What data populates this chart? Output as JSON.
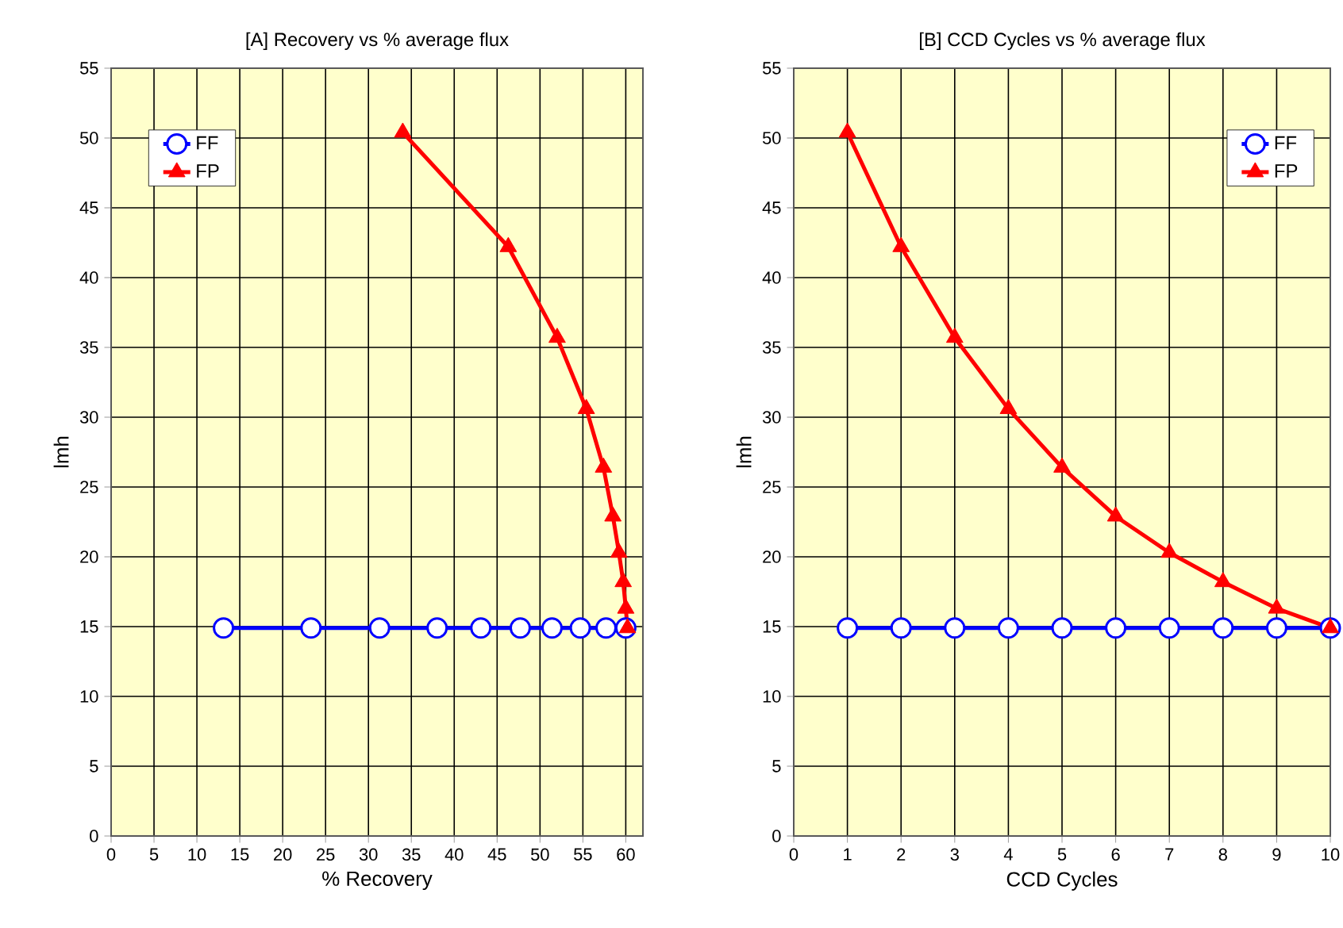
{
  "chart_data": [
    {
      "type": "line",
      "title": "[A]  Recovery  vs %  average flux",
      "xlabel": "% Recovery",
      "ylabel": "lmh",
      "xlim": [
        0,
        62
      ],
      "ylim": [
        0,
        55
      ],
      "xticks": [
        0,
        5,
        10,
        15,
        20,
        25,
        30,
        35,
        40,
        45,
        50,
        55,
        60
      ],
      "yticks": [
        0,
        5,
        10,
        15,
        20,
        25,
        30,
        35,
        40,
        45,
        50,
        55
      ],
      "grid": true,
      "legend": "top left",
      "series": [
        {
          "name": "FF",
          "color": "#0000ff",
          "marker": "circle",
          "x": [
            13.1,
            23.3,
            31.3,
            38.0,
            43.1,
            47.7,
            51.4,
            54.7,
            57.7,
            60.0
          ],
          "values": [
            14.9,
            14.9,
            14.9,
            14.9,
            14.9,
            14.9,
            14.9,
            14.9,
            14.9,
            14.9
          ]
        },
        {
          "name": "FP",
          "color": "#ff0000",
          "marker": "triangle",
          "x": [
            34.0,
            46.3,
            52.0,
            55.4,
            57.4,
            58.5,
            59.2,
            59.7,
            60.0,
            60.2
          ],
          "values": [
            50.4,
            42.2,
            35.7,
            30.6,
            26.4,
            22.9,
            20.3,
            18.2,
            16.3,
            14.9
          ]
        }
      ]
    },
    {
      "type": "line",
      "title": "[B] CCD Cycles  vs %  average flux",
      "xlabel": "CCD Cycles",
      "ylabel": "lmh",
      "xlim": [
        0,
        10
      ],
      "ylim": [
        0,
        55
      ],
      "xticks": [
        0,
        1,
        2,
        3,
        4,
        5,
        6,
        7,
        8,
        9,
        10
      ],
      "yticks": [
        0,
        5,
        10,
        15,
        20,
        25,
        30,
        35,
        40,
        45,
        50,
        55
      ],
      "grid": true,
      "legend": "top right",
      "series": [
        {
          "name": "FF",
          "color": "#0000ff",
          "marker": "circle",
          "x": [
            1,
            2,
            3,
            4,
            5,
            6,
            7,
            8,
            9,
            10
          ],
          "values": [
            14.9,
            14.9,
            14.9,
            14.9,
            14.9,
            14.9,
            14.9,
            14.9,
            14.9,
            14.9
          ]
        },
        {
          "name": "FP",
          "color": "#ff0000",
          "marker": "triangle",
          "x": [
            1,
            2,
            3,
            4,
            5,
            6,
            7,
            8,
            9,
            10
          ],
          "values": [
            50.4,
            42.2,
            35.7,
            30.6,
            26.4,
            22.9,
            20.3,
            18.2,
            16.3,
            14.9
          ]
        }
      ]
    }
  ]
}
